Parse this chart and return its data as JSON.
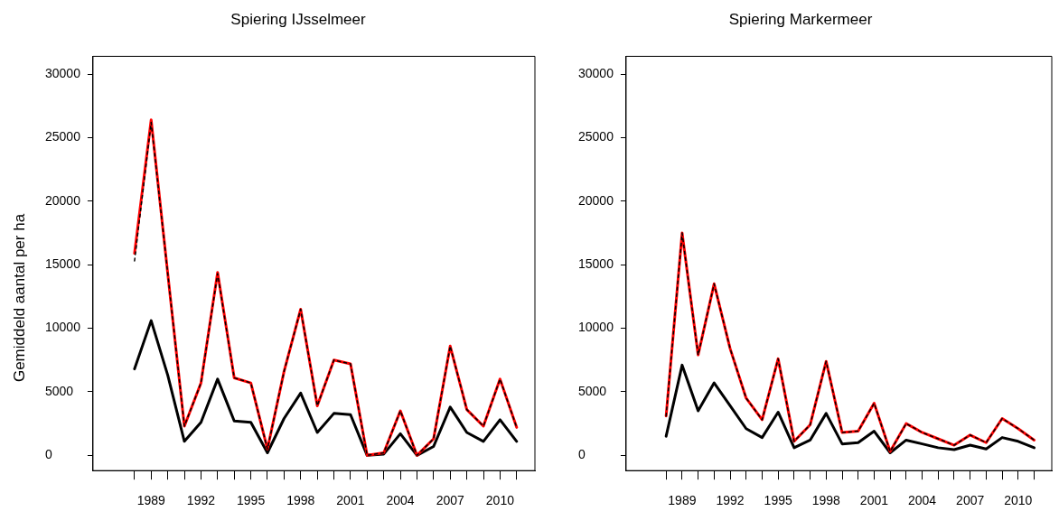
{
  "chart_data": [
    {
      "type": "line",
      "title": "Spiering IJsselmeer",
      "ylabel": "Gemiddeld aantal per ha",
      "x": [
        1988,
        1989,
        1990,
        1991,
        1992,
        1993,
        1994,
        1995,
        1996,
        1997,
        1998,
        1999,
        2000,
        2001,
        2002,
        2003,
        2004,
        2005,
        2006,
        2007,
        2008,
        2009,
        2010,
        2011
      ],
      "series": [
        {
          "color": "#000000",
          "line_style": "solid",
          "values": [
            6800,
            10600,
            6300,
            1100,
            2600,
            6000,
            2700,
            2600,
            200,
            2900,
            4900,
            1800,
            3300,
            3200,
            0,
            100,
            1700,
            0,
            700,
            3800,
            1800,
            1100,
            2800,
            1100
          ]
        },
        {
          "color": "#ff0000",
          "line_style": "solid",
          "values": [
            15900,
            26400,
            14300,
            2300,
            5700,
            14400,
            6100,
            5700,
            500,
            6600,
            11500,
            3900,
            7500,
            7200,
            0,
            200,
            3500,
            0,
            1300,
            8600,
            3600,
            2300,
            6000,
            2200
          ]
        },
        {
          "color": "#000000",
          "line_style": "dashed",
          "values": [
            15300,
            26200,
            14300,
            2300,
            5700,
            14300,
            6100,
            5700,
            500,
            6600,
            11500,
            3900,
            7500,
            7200,
            0,
            200,
            3500,
            0,
            1300,
            8600,
            3600,
            2300,
            6000,
            2200
          ]
        }
      ],
      "xlim": [
        1985.5,
        2012.1
      ],
      "ylim": [
        -1200,
        31400
      ],
      "xticks": [
        {
          "value": 1988,
          "label": null
        },
        1989,
        {
          "value": 1990,
          "label": null
        },
        {
          "value": 1991,
          "label": null
        },
        1992,
        {
          "value": 1993,
          "label": null
        },
        {
          "value": 1994,
          "label": null
        },
        1995,
        {
          "value": 1996,
          "label": null
        },
        {
          "value": 1997,
          "label": null
        },
        1998,
        {
          "value": 1999,
          "label": null
        },
        {
          "value": 2000,
          "label": null
        },
        2001,
        {
          "value": 2002,
          "label": null
        },
        {
          "value": 2003,
          "label": null
        },
        2004,
        {
          "value": 2005,
          "label": null
        },
        {
          "value": 2006,
          "label": null
        },
        2007,
        {
          "value": 2008,
          "label": null
        },
        {
          "value": 2009,
          "label": null
        },
        2010,
        {
          "value": 2011,
          "label": null
        }
      ],
      "yticks": [
        0,
        5000,
        10000,
        15000,
        20000,
        25000,
        30000
      ],
      "legend": false
    },
    {
      "type": "line",
      "title": "Spiering Markermeer",
      "x": [
        1988,
        1989,
        1990,
        1991,
        1992,
        1993,
        1994,
        1995,
        1996,
        1997,
        1998,
        1999,
        2000,
        2001,
        2002,
        2003,
        2004,
        2005,
        2006,
        2007,
        2008,
        2009,
        2010,
        2011
      ],
      "series": [
        {
          "color": "#000000",
          "line_style": "solid",
          "values": [
            1500,
            7100,
            3500,
            5700,
            3900,
            2100,
            1400,
            3400,
            600,
            1200,
            3300,
            900,
            1000,
            1900,
            200,
            1200,
            900,
            600,
            450,
            800,
            500,
            1400,
            1100,
            600
          ]
        },
        {
          "color": "#ff0000",
          "line_style": "solid",
          "values": [
            3100,
            17500,
            7900,
            13500,
            8400,
            4500,
            2800,
            7600,
            1100,
            2400,
            7400,
            1800,
            1900,
            4100,
            300,
            2500,
            1800,
            1300,
            800,
            1600,
            1000,
            2900,
            2100,
            1200
          ]
        },
        {
          "color": "#000000",
          "line_style": "dashed",
          "values": [
            3100,
            17500,
            7900,
            13500,
            8400,
            4500,
            2800,
            7600,
            1100,
            2400,
            7400,
            1800,
            1900,
            4100,
            300,
            2500,
            1800,
            1300,
            800,
            1600,
            1000,
            2900,
            2100,
            1200
          ]
        }
      ],
      "xlim": [
        1985.5,
        2012.1
      ],
      "ylim": [
        -1200,
        31400
      ],
      "xticks": [
        {
          "value": 1988,
          "label": null
        },
        1989,
        {
          "value": 1990,
          "label": null
        },
        {
          "value": 1991,
          "label": null
        },
        1992,
        {
          "value": 1993,
          "label": null
        },
        {
          "value": 1994,
          "label": null
        },
        1995,
        {
          "value": 1996,
          "label": null
        },
        {
          "value": 1997,
          "label": null
        },
        1998,
        {
          "value": 1999,
          "label": null
        },
        {
          "value": 2000,
          "label": null
        },
        2001,
        {
          "value": 2002,
          "label": null
        },
        {
          "value": 2003,
          "label": null
        },
        2004,
        {
          "value": 2005,
          "label": null
        },
        {
          "value": 2006,
          "label": null
        },
        2007,
        {
          "value": 2008,
          "label": null
        },
        {
          "value": 2009,
          "label": null
        },
        2010,
        {
          "value": 2011,
          "label": null
        }
      ],
      "yticks": [
        0,
        5000,
        10000,
        15000,
        20000,
        25000,
        30000
      ],
      "legend": false
    }
  ]
}
